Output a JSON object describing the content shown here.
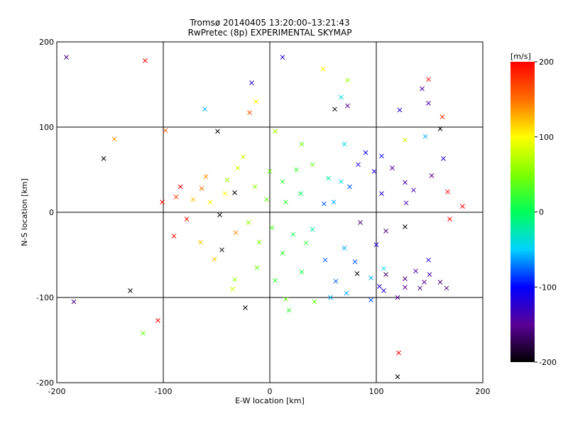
{
  "chart_data": {
    "type": "scatter",
    "title": "Tromsø 20140405 13:20:00–13:21:43",
    "subtitle": "RwPretec (8p) EXPERIMENTAL SKYMAP",
    "xlabel": "E-W location [km]",
    "ylabel": "N-S location [km]",
    "xlim": [
      -200,
      200
    ],
    "ylim": [
      -200,
      200
    ],
    "x_ticks": [
      "-200",
      "-100",
      "0",
      "100",
      "200"
    ],
    "y_ticks": [
      "200",
      "100",
      "0",
      "-100",
      "-200"
    ],
    "grid_lines": [
      -100,
      0,
      100
    ],
    "colorbar": {
      "label": "[m/s]",
      "range": [
        -200,
        200
      ],
      "tick_labels": [
        "200",
        "100",
        "0",
        "-100",
        "-200"
      ],
      "colors": [
        "#000000",
        "#5a0096",
        "#0000ff",
        "#00d2ff",
        "#00ff5a",
        "#7dff00",
        "#ffff00",
        "#ff6e00",
        "#ff0000"
      ]
    },
    "marker_legend": {
      "small": "dot",
      "large": "x"
    },
    "points": [
      {
        "x": -191,
        "y": 182,
        "v": -160,
        "m": "x"
      },
      {
        "x": -117,
        "y": 178,
        "v": 200,
        "m": "x"
      },
      {
        "x": 12,
        "y": 182,
        "v": -120,
        "m": "x"
      },
      {
        "x": 50,
        "y": 168,
        "v": 100,
        "m": "x"
      },
      {
        "x": 149,
        "y": 156,
        "v": 200,
        "m": "x"
      },
      {
        "x": 73,
        "y": 155,
        "v": 60,
        "m": "x"
      },
      {
        "x": -17,
        "y": 152,
        "v": -120,
        "m": "x"
      },
      {
        "x": 143,
        "y": 145,
        "v": -140,
        "m": "x"
      },
      {
        "x": 67,
        "y": 135,
        "v": -40,
        "m": "x"
      },
      {
        "x": -13,
        "y": 130,
        "v": 100,
        "m": "x"
      },
      {
        "x": 149,
        "y": 128,
        "v": -140,
        "m": "x"
      },
      {
        "x": -19,
        "y": 117,
        "v": 160,
        "m": "x"
      },
      {
        "x": -61,
        "y": 121,
        "v": -60,
        "m": "x"
      },
      {
        "x": 61,
        "y": 121,
        "v": -200,
        "m": "x"
      },
      {
        "x": 73,
        "y": 125,
        "v": -150,
        "m": "x"
      },
      {
        "x": 122,
        "y": 120,
        "v": -120,
        "m": "x"
      },
      {
        "x": 162,
        "y": 112,
        "v": 180,
        "m": "x"
      },
      {
        "x": -98,
        "y": 96,
        "v": 160,
        "m": "x"
      },
      {
        "x": -49,
        "y": 95,
        "v": -200,
        "m": "x"
      },
      {
        "x": 160,
        "y": 98,
        "v": -200,
        "m": "x"
      },
      {
        "x": -146,
        "y": 86,
        "v": 140,
        "m": "x"
      },
      {
        "x": 127,
        "y": 85,
        "v": 80,
        "m": "x"
      },
      {
        "x": 146,
        "y": 89,
        "v": -60,
        "m": "x"
      },
      {
        "x": -156,
        "y": 63,
        "v": -200,
        "m": "x"
      },
      {
        "x": 105,
        "y": 66,
        "v": -100,
        "m": "x"
      },
      {
        "x": 163,
        "y": 63,
        "v": -120,
        "m": "x"
      },
      {
        "x": -30,
        "y": 52,
        "v": 80,
        "m": "x"
      },
      {
        "x": 40,
        "y": 56,
        "v": 40,
        "m": "x"
      },
      {
        "x": 83,
        "y": 56,
        "v": -120,
        "m": "x"
      },
      {
        "x": 98,
        "y": 48,
        "v": -120,
        "m": "x"
      },
      {
        "x": 115,
        "y": 52,
        "v": -140,
        "m": "x"
      },
      {
        "x": -60,
        "y": 42,
        "v": 140,
        "m": "x"
      },
      {
        "x": -40,
        "y": 38,
        "v": 60,
        "m": "x"
      },
      {
        "x": 127,
        "y": 35,
        "v": -140,
        "m": "x"
      },
      {
        "x": 152,
        "y": 43,
        "v": -150,
        "m": "x"
      },
      {
        "x": 67,
        "y": 36,
        "v": -40,
        "m": "x"
      },
      {
        "x": -84,
        "y": 30,
        "v": 200,
        "m": "x"
      },
      {
        "x": -64,
        "y": 28,
        "v": 150,
        "m": "x"
      },
      {
        "x": -42,
        "y": 22,
        "v": 100,
        "m": "x"
      },
      {
        "x": -33,
        "y": 23,
        "v": -200,
        "m": "x"
      },
      {
        "x": 29,
        "y": 22,
        "v": 0,
        "m": "x"
      },
      {
        "x": 105,
        "y": 22,
        "v": -120,
        "m": "x"
      },
      {
        "x": 135,
        "y": 26,
        "v": -140,
        "m": "x"
      },
      {
        "x": 167,
        "y": 24,
        "v": 200,
        "m": "x"
      },
      {
        "x": -101,
        "y": 12,
        "v": 200,
        "m": "x"
      },
      {
        "x": -88,
        "y": 18,
        "v": 170,
        "m": "x"
      },
      {
        "x": -72,
        "y": 15,
        "v": 120,
        "m": "x"
      },
      {
        "x": -56,
        "y": 12,
        "v": 100,
        "m": "x"
      },
      {
        "x": 51,
        "y": 10,
        "v": -80,
        "m": "x"
      },
      {
        "x": 60,
        "y": 12,
        "v": -60,
        "m": "x"
      },
      {
        "x": 128,
        "y": 11,
        "v": -140,
        "m": "x"
      },
      {
        "x": 181,
        "y": 7,
        "v": 200,
        "m": "x"
      },
      {
        "x": 169,
        "y": -8,
        "v": 200,
        "m": "x"
      },
      {
        "x": -78,
        "y": -8,
        "v": 190,
        "m": "x"
      },
      {
        "x": -47,
        "y": -3,
        "v": -200,
        "m": "x"
      },
      {
        "x": 85,
        "y": -12,
        "v": -160,
        "m": "x"
      },
      {
        "x": 127,
        "y": -17,
        "v": -200,
        "m": "x"
      },
      {
        "x": 109,
        "y": -22,
        "v": -160,
        "m": "x"
      },
      {
        "x": -32,
        "y": -24,
        "v": 140,
        "m": "x"
      },
      {
        "x": -90,
        "y": -28,
        "v": 190,
        "m": "x"
      },
      {
        "x": -45,
        "y": -44,
        "v": -200,
        "m": "x"
      },
      {
        "x": 100,
        "y": -38,
        "v": -120,
        "m": "x"
      },
      {
        "x": 34,
        "y": -36,
        "v": 20,
        "m": "x"
      },
      {
        "x": -52,
        "y": -55,
        "v": 120,
        "m": "x"
      },
      {
        "x": 52,
        "y": -56,
        "v": -80,
        "m": "x"
      },
      {
        "x": 149,
        "y": -56,
        "v": -120,
        "m": "x"
      },
      {
        "x": 107,
        "y": -66,
        "v": -40,
        "m": "x"
      },
      {
        "x": 82,
        "y": -72,
        "v": -200,
        "m": "x"
      },
      {
        "x": 137,
        "y": -69,
        "v": -140,
        "m": "x"
      },
      {
        "x": 150,
        "y": -73,
        "v": -140,
        "m": "x"
      },
      {
        "x": 109,
        "y": -73,
        "v": -160,
        "m": "x"
      },
      {
        "x": 127,
        "y": -78,
        "v": -160,
        "m": "x"
      },
      {
        "x": 95,
        "y": -77,
        "v": -60,
        "m": "x"
      },
      {
        "x": -33,
        "y": -79,
        "v": 60,
        "m": "x"
      },
      {
        "x": 5,
        "y": -80,
        "v": 20,
        "m": "x"
      },
      {
        "x": 62,
        "y": -81,
        "v": -80,
        "m": "x"
      },
      {
        "x": 145,
        "y": -82,
        "v": -150,
        "m": "x"
      },
      {
        "x": 127,
        "y": -88,
        "v": -150,
        "m": "x"
      },
      {
        "x": 166,
        "y": -89,
        "v": -160,
        "m": "x"
      },
      {
        "x": 103,
        "y": -87,
        "v": -120,
        "m": "x"
      },
      {
        "x": 141,
        "y": -89,
        "v": -160,
        "m": "x"
      },
      {
        "x": 160,
        "y": -82,
        "v": -160,
        "m": "x"
      },
      {
        "x": 107,
        "y": -92,
        "v": -120,
        "m": "x"
      },
      {
        "x": -131,
        "y": -92,
        "v": -200,
        "m": "x"
      },
      {
        "x": 57,
        "y": -100,
        "v": -60,
        "m": "x"
      },
      {
        "x": 120,
        "y": -100,
        "v": -150,
        "m": "x"
      },
      {
        "x": 15,
        "y": -102,
        "v": 40,
        "m": "x"
      },
      {
        "x": 95,
        "y": -103,
        "v": -80,
        "m": "x"
      },
      {
        "x": 42,
        "y": -105,
        "v": 40,
        "m": "x"
      },
      {
        "x": -184,
        "y": -105,
        "v": -160,
        "m": "x"
      },
      {
        "x": -23,
        "y": -112,
        "v": -200,
        "m": "x"
      },
      {
        "x": 18,
        "y": -115,
        "v": 20,
        "m": "x"
      },
      {
        "x": -105,
        "y": -127,
        "v": 200,
        "m": "x"
      },
      {
        "x": -119,
        "y": -142,
        "v": 40,
        "m": "x"
      },
      {
        "x": 121,
        "y": -165,
        "v": 200,
        "m": "x"
      },
      {
        "x": 120,
        "y": -193,
        "v": -200,
        "m": "x"
      },
      {
        "x": 0,
        "y": 48,
        "v": 40,
        "m": "x"
      },
      {
        "x": 12,
        "y": 36,
        "v": 20,
        "m": "x"
      },
      {
        "x": -14,
        "y": 30,
        "v": 60,
        "m": "x"
      },
      {
        "x": 15,
        "y": 12,
        "v": 20,
        "m": "x"
      },
      {
        "x": -3,
        "y": 15,
        "v": 40,
        "m": "x"
      },
      {
        "x": -20,
        "y": -12,
        "v": 60,
        "m": "x"
      },
      {
        "x": 2,
        "y": -18,
        "v": 30,
        "m": "x"
      },
      {
        "x": 22,
        "y": -26,
        "v": 10,
        "m": "x"
      },
      {
        "x": -10,
        "y": -35,
        "v": 50,
        "m": "x"
      },
      {
        "x": 12,
        "y": -48,
        "v": 20,
        "m": "x"
      },
      {
        "x": 40,
        "y": -20,
        "v": -20,
        "m": "x"
      },
      {
        "x": 70,
        "y": -42,
        "v": -60,
        "m": "x"
      },
      {
        "x": 25,
        "y": 50,
        "v": 20,
        "m": "x"
      },
      {
        "x": 55,
        "y": 40,
        "v": -20,
        "m": "x"
      },
      {
        "x": 75,
        "y": 30,
        "v": -80,
        "m": "x"
      },
      {
        "x": -25,
        "y": 65,
        "v": 80,
        "m": "x"
      },
      {
        "x": 30,
        "y": 80,
        "v": 40,
        "m": "x"
      },
      {
        "x": 70,
        "y": 80,
        "v": -40,
        "m": "x"
      },
      {
        "x": 90,
        "y": 70,
        "v": -100,
        "m": "x"
      },
      {
        "x": 5,
        "y": 95,
        "v": 60,
        "m": "x"
      },
      {
        "x": -65,
        "y": -35,
        "v": 120,
        "m": "x"
      },
      {
        "x": -12,
        "y": -65,
        "v": 40,
        "m": "x"
      },
      {
        "x": 30,
        "y": -70,
        "v": 10,
        "m": "x"
      },
      {
        "x": 80,
        "y": -58,
        "v": -80,
        "m": "x"
      },
      {
        "x": -35,
        "y": -90,
        "v": 80,
        "m": "x"
      },
      {
        "x": 72,
        "y": -95,
        "v": -60,
        "m": "x"
      }
    ]
  }
}
